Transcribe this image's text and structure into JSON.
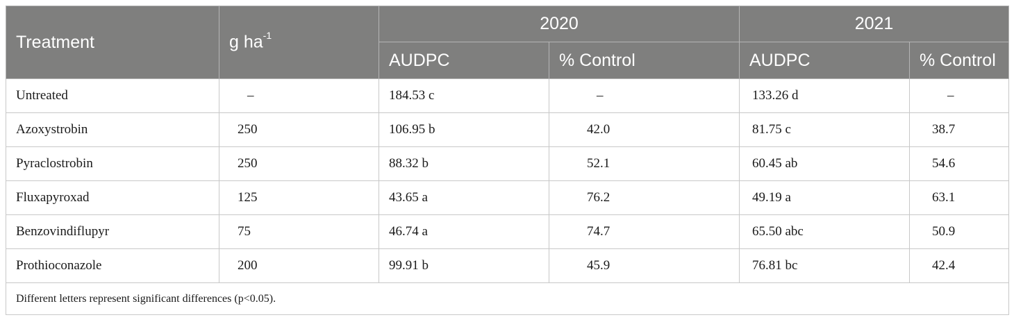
{
  "header": {
    "treatment": "Treatment",
    "dose_base": "g ha",
    "dose_sup": "-1",
    "year_2020": "2020",
    "year_2021": "2021",
    "audpc_2020": "AUDPC",
    "control_2020": "% Control",
    "audpc_2021": "AUDPC",
    "control_2021": "% Control"
  },
  "rows": [
    {
      "treatment": "Untreated",
      "dose": "–",
      "audpc_2020": "184.53 c",
      "control_2020": "–",
      "audpc_2021": "133.26 d",
      "control_2021": "–"
    },
    {
      "treatment": "Azoxystrobin",
      "dose": "250",
      "audpc_2020": "106.95 b",
      "control_2020": "42.0",
      "audpc_2021": "81.75 c",
      "control_2021": "38.7"
    },
    {
      "treatment": "Pyraclostrobin",
      "dose": "250",
      "audpc_2020": "88.32 b",
      "control_2020": "52.1",
      "audpc_2021": "60.45 ab",
      "control_2021": "54.6"
    },
    {
      "treatment": "Fluxapyroxad",
      "dose": "125",
      "audpc_2020": "43.65 a",
      "control_2020": "76.2",
      "audpc_2021": "49.19 a",
      "control_2021": "63.1"
    },
    {
      "treatment": "Benzovindiflupyr",
      "dose": "75",
      "audpc_2020": "46.74 a",
      "control_2020": "74.7",
      "audpc_2021": "65.50 abc",
      "control_2021": "50.9"
    },
    {
      "treatment": "Prothioconazole",
      "dose": "200",
      "audpc_2020": "99.91 b",
      "control_2020": "45.9",
      "audpc_2021": "76.81 bc",
      "control_2021": "42.4"
    }
  ],
  "footnote": "Different letters represent significant differences (p<0.05)."
}
